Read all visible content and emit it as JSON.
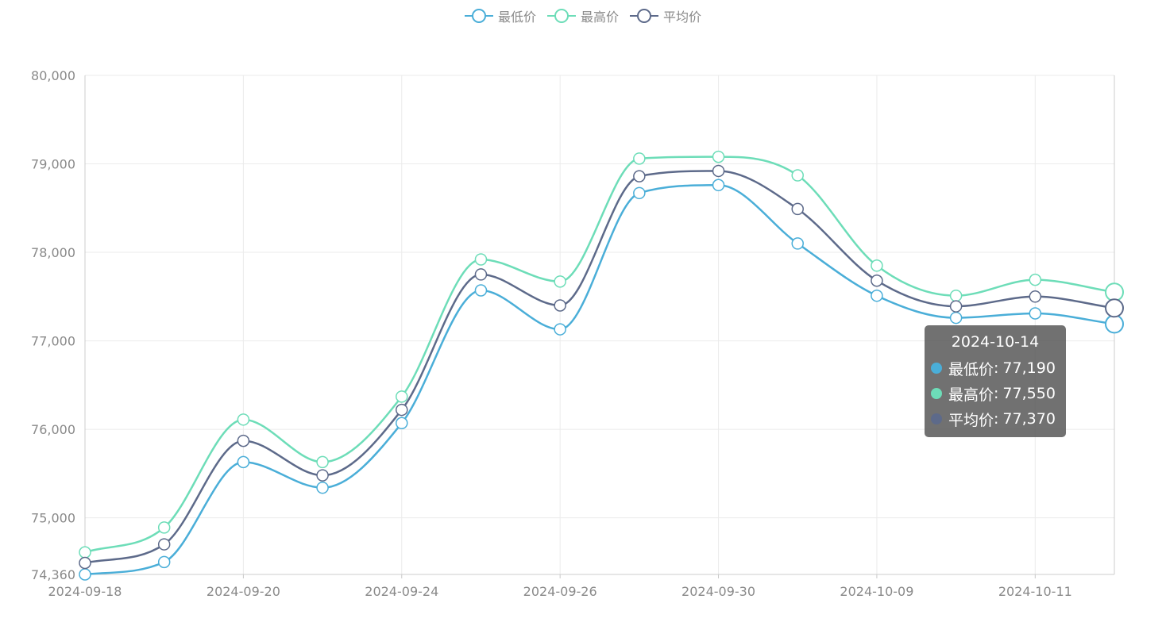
{
  "legend": [
    "最低价",
    "最高价",
    "平均价"
  ],
  "colors": {
    "low": "#4aaed8",
    "high": "#6dddb8",
    "avg": "#5d6a8a",
    "grid": "#ebebeb",
    "axis_text": "#8a8a8a"
  },
  "tooltip": {
    "title": "2024-10-14",
    "rows": [
      {
        "name": "最低价",
        "value": "77,190",
        "color": "#4aaed8"
      },
      {
        "name": "最高价",
        "value": "77,550",
        "color": "#6dddb8"
      },
      {
        "name": "平均价",
        "value": "77,370",
        "color": "#5d6a8a"
      }
    ]
  },
  "chart_data": {
    "type": "line",
    "smooth": true,
    "x": [
      "2024-09-18",
      "",
      "2024-09-20",
      "",
      "2024-09-24",
      "",
      "2024-09-26",
      "",
      "2024-09-30",
      "",
      "2024-10-09",
      "",
      "2024-10-11",
      "2024-10-14"
    ],
    "x_tick_labels": [
      "2024-09-18",
      "2024-09-20",
      "2024-09-24",
      "2024-09-26",
      "2024-09-30",
      "2024-10-09",
      "2024-10-11"
    ],
    "series": [
      {
        "name": "最低价",
        "values": [
          74360,
          74500,
          75630,
          75340,
          76070,
          77570,
          77130,
          78670,
          78760,
          78100,
          77510,
          77260,
          77310,
          77190
        ]
      },
      {
        "name": "最高价",
        "values": [
          74610,
          74890,
          76110,
          75630,
          76370,
          77920,
          77670,
          79060,
          79080,
          78870,
          77850,
          77510,
          77690,
          77550
        ]
      },
      {
        "name": "平均价",
        "values": [
          74490,
          74700,
          75870,
          75480,
          76220,
          77750,
          77400,
          78860,
          78920,
          78490,
          77680,
          77390,
          77500,
          77370
        ]
      }
    ],
    "y_ticks": [
      "74,360",
      "75,000",
      "76,000",
      "77,000",
      "78,000",
      "79,000",
      "80,000"
    ],
    "ylim": [
      74360,
      80000
    ],
    "grid": true,
    "legend_position": "top-center",
    "highlight_index": 13
  }
}
